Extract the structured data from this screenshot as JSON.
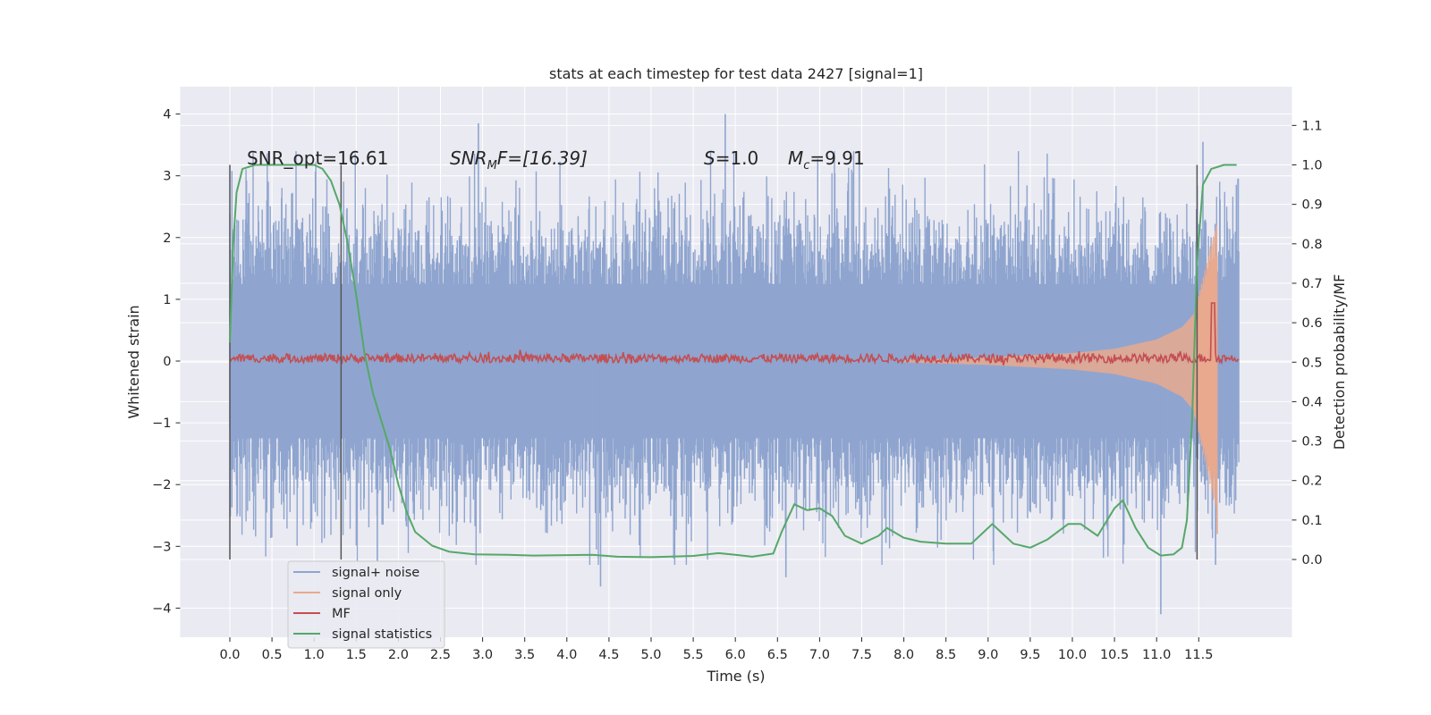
{
  "chart_data": {
    "type": "line",
    "title": "stats at each timestep for test data 2427 [signal=1]",
    "xlabel": "Time (s)",
    "ylabel": "Whitened strain",
    "ylabel_right": "Detection probability/MF",
    "xlim": [
      -0.58,
      12.0
    ],
    "ylim": [
      -4.45,
      4.4
    ],
    "ylim_right": [
      -0.2,
      1.19
    ],
    "x_ticks": [
      "0.0",
      "0.5",
      "1.0",
      "1.5",
      "2.0",
      "2.5",
      "3.0",
      "3.5",
      "4.0",
      "4.5",
      "5.0",
      "5.5",
      "6.0",
      "6.5",
      "7.0",
      "7.5",
      "8.0",
      "8.5",
      "9.0",
      "9.5",
      "10.0",
      "10.5",
      "11.0",
      "11.5"
    ],
    "y_ticks": [
      "4",
      "3",
      "2",
      "1",
      "0",
      "−1",
      "−2",
      "−3",
      "−4"
    ],
    "y_ticks_right": [
      "1.1",
      "1.0",
      "0.9",
      "0.8",
      "0.7",
      "0.6",
      "0.5",
      "0.4",
      "0.3",
      "0.2",
      "0.1",
      "0.0"
    ],
    "grid": true,
    "legend_position": "lower-left",
    "annotations": {
      "snr_opt": "SNR_opt=16.61",
      "snr_mf_main": "SNR",
      "snr_mf_sub": "M",
      "snr_mf_tail": "F=[16.39]",
      "s_main": "S",
      "s_tail": "=1.0",
      "mc_main": "M",
      "mc_sub": "c",
      "mc_tail": "=9.91"
    },
    "vertical_lines_x": [
      0.0,
      1.32,
      11.48
    ],
    "series": [
      {
        "name": "signal+ noise",
        "color": "#8fa5cf",
        "description_range": "dense noise between about -3.6 and 3.8",
        "t_start": 0.0,
        "t_end": 11.98,
        "spikes": [
          {
            "x": 2.95,
            "y": 3.85
          },
          {
            "x": 5.88,
            "y": 4.0
          },
          {
            "x": 4.4,
            "y": -3.65
          },
          {
            "x": 11.05,
            "y": -4.1
          },
          {
            "x": 6.6,
            "y": -3.5
          },
          {
            "x": 11.55,
            "y": 3.55
          },
          {
            "x": 1.75,
            "y": -3.25
          },
          {
            "x": 11.7,
            "y": -3.3
          }
        ]
      },
      {
        "name": "signal only",
        "color": "#e8a98e",
        "envelope": [
          {
            "x": 8.0,
            "y": 0.02
          },
          {
            "x": 9.0,
            "y": 0.06
          },
          {
            "x": 10.0,
            "y": 0.13
          },
          {
            "x": 10.5,
            "y": 0.2
          },
          {
            "x": 11.0,
            "y": 0.35
          },
          {
            "x": 11.3,
            "y": 0.55
          },
          {
            "x": 11.5,
            "y": 0.85
          },
          {
            "x": 11.6,
            "y": 1.3
          },
          {
            "x": 11.66,
            "y": 2.0
          },
          {
            "x": 11.7,
            "y": 1.2
          },
          {
            "x": 11.72,
            "y": -2.8
          }
        ]
      },
      {
        "name": "MF",
        "color": "#c44e52",
        "baseline_right": 0.51,
        "peak": {
          "x": 11.67,
          "y_right": 0.65
        }
      },
      {
        "name": "signal statistics",
        "color": "#55a868",
        "points": [
          [
            0.0,
            0.55
          ],
          [
            0.04,
            0.8
          ],
          [
            0.08,
            0.93
          ],
          [
            0.15,
            0.99
          ],
          [
            0.3,
            1.0
          ],
          [
            0.6,
            1.0
          ],
          [
            1.0,
            1.0
          ],
          [
            1.1,
            0.99
          ],
          [
            1.2,
            0.96
          ],
          [
            1.3,
            0.9
          ],
          [
            1.4,
            0.8
          ],
          [
            1.5,
            0.67
          ],
          [
            1.6,
            0.52
          ],
          [
            1.7,
            0.42
          ],
          [
            1.8,
            0.35
          ],
          [
            1.9,
            0.28
          ],
          [
            2.0,
            0.19
          ],
          [
            2.1,
            0.12
          ],
          [
            2.2,
            0.07
          ],
          [
            2.4,
            0.035
          ],
          [
            2.6,
            0.02
          ],
          [
            2.9,
            0.013
          ],
          [
            3.3,
            0.012
          ],
          [
            3.6,
            0.01
          ],
          [
            4.0,
            0.011
          ],
          [
            4.3,
            0.012
          ],
          [
            4.6,
            0.007
          ],
          [
            5.0,
            0.006
          ],
          [
            5.5,
            0.009
          ],
          [
            5.8,
            0.016
          ],
          [
            6.0,
            0.012
          ],
          [
            6.2,
            0.007
          ],
          [
            6.45,
            0.015
          ],
          [
            6.55,
            0.07
          ],
          [
            6.7,
            0.14
          ],
          [
            6.85,
            0.125
          ],
          [
            7.0,
            0.13
          ],
          [
            7.15,
            0.11
          ],
          [
            7.3,
            0.06
          ],
          [
            7.5,
            0.04
          ],
          [
            7.7,
            0.06
          ],
          [
            7.8,
            0.08
          ],
          [
            8.0,
            0.055
          ],
          [
            8.2,
            0.045
          ],
          [
            8.5,
            0.04
          ],
          [
            8.8,
            0.04
          ],
          [
            8.95,
            0.07
          ],
          [
            9.05,
            0.09
          ],
          [
            9.15,
            0.07
          ],
          [
            9.3,
            0.04
          ],
          [
            9.5,
            0.03
          ],
          [
            9.7,
            0.05
          ],
          [
            9.95,
            0.09
          ],
          [
            10.1,
            0.09
          ],
          [
            10.3,
            0.06
          ],
          [
            10.5,
            0.13
          ],
          [
            10.6,
            0.15
          ],
          [
            10.75,
            0.08
          ],
          [
            10.9,
            0.03
          ],
          [
            11.05,
            0.01
          ],
          [
            11.2,
            0.013
          ],
          [
            11.3,
            0.03
          ],
          [
            11.36,
            0.1
          ],
          [
            11.42,
            0.35
          ],
          [
            11.48,
            0.75
          ],
          [
            11.55,
            0.95
          ],
          [
            11.65,
            0.99
          ],
          [
            11.8,
            1.0
          ],
          [
            11.95,
            1.0
          ]
        ]
      }
    ]
  }
}
